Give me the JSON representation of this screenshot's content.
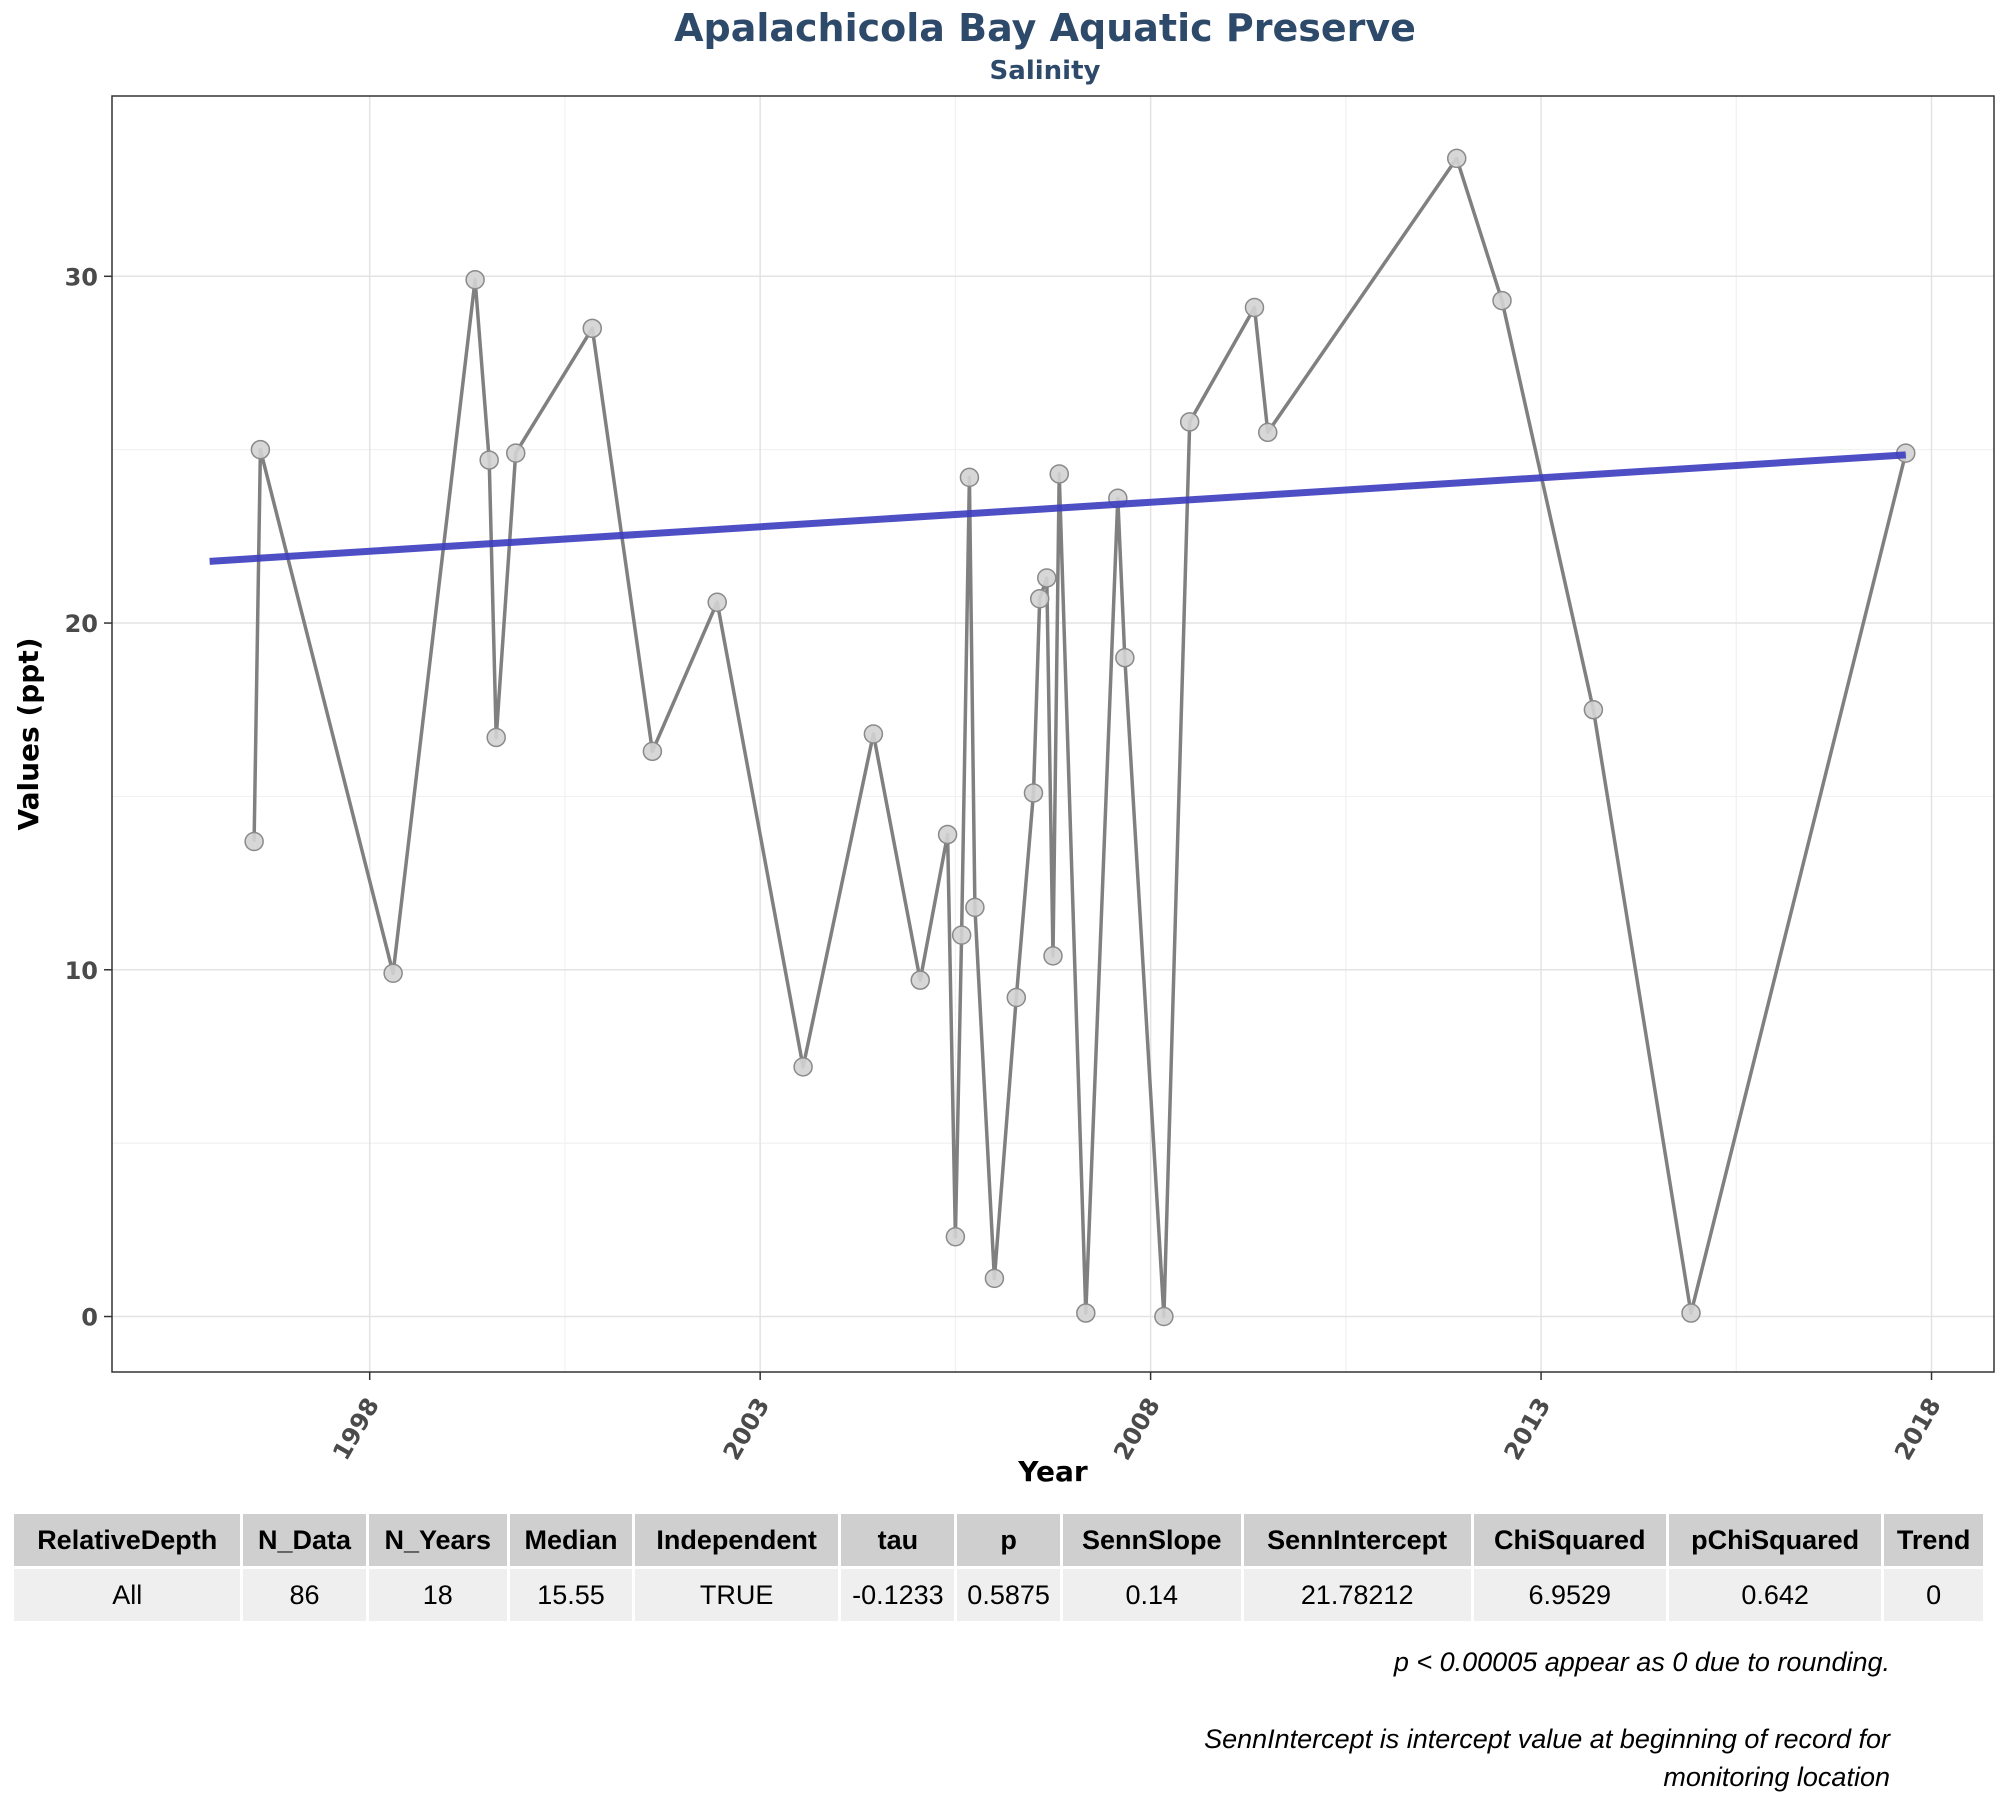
{
  "header": {
    "title": "Apalachicola Bay Aquatic Preserve",
    "subtitle": "Salinity"
  },
  "chart_data": {
    "type": "line",
    "title": "Apalachicola Bay Aquatic Preserve",
    "subtitle": "Salinity",
    "xlabel": "Year",
    "ylabel": "Values (ppt)",
    "xlim": [
      1994.7,
      2018.8
    ],
    "ylim": [
      -1.6,
      35.2
    ],
    "x_ticks": [
      1998,
      2003,
      2008,
      2013,
      2018
    ],
    "y_ticks": [
      0,
      10,
      20,
      30
    ],
    "grid": true,
    "series": [
      {
        "points": [
          [
            1996.52,
            13.7
          ],
          [
            1996.6,
            25.0
          ],
          [
            1998.3,
            9.9
          ],
          [
            1999.35,
            29.9
          ],
          [
            1999.53,
            24.7
          ],
          [
            1999.62,
            16.7
          ],
          [
            1999.87,
            24.9
          ],
          [
            2000.85,
            28.5
          ],
          [
            2001.62,
            16.3
          ],
          [
            2002.45,
            20.6
          ],
          [
            2003.55,
            7.2
          ],
          [
            2004.45,
            16.8
          ],
          [
            2005.05,
            9.7
          ],
          [
            2005.4,
            13.9
          ],
          [
            2005.5,
            2.3
          ],
          [
            2005.58,
            11.0
          ],
          [
            2005.68,
            24.2
          ],
          [
            2005.75,
            11.8
          ],
          [
            2006.0,
            1.1
          ],
          [
            2006.28,
            9.2
          ],
          [
            2006.5,
            15.1
          ],
          [
            2006.58,
            20.7
          ],
          [
            2006.67,
            21.3
          ],
          [
            2006.75,
            10.4
          ],
          [
            2006.83,
            24.3
          ],
          [
            2007.17,
            0.1
          ],
          [
            2007.58,
            23.6
          ],
          [
            2007.67,
            19.0
          ],
          [
            2008.17,
            0.0
          ],
          [
            2008.5,
            25.8
          ],
          [
            2009.33,
            29.1
          ],
          [
            2009.5,
            25.5
          ],
          [
            2011.92,
            33.4
          ],
          [
            2012.5,
            29.3
          ],
          [
            2013.67,
            17.5
          ],
          [
            2014.92,
            0.1
          ],
          [
            2017.67,
            24.9
          ]
        ]
      }
    ],
    "trend_line": {
      "x": [
        1995.95,
        2017.67
      ],
      "y": [
        21.78,
        24.85
      ]
    }
  },
  "table": {
    "headers": [
      "RelativeDepth",
      "N_Data",
      "N_Years",
      "Median",
      "Independent",
      "tau",
      "p",
      "SennSlope",
      "SennIntercept",
      "ChiSquared",
      "pChiSquared",
      "Trend"
    ],
    "rows": [
      [
        "All",
        "86",
        "18",
        "15.55",
        "TRUE",
        "-0.1233",
        "0.5875",
        "0.14",
        "21.78212",
        "6.9529",
        "0.642",
        "0"
      ]
    ]
  },
  "notes": {
    "note1": "p < 0.00005 appear as 0 due to rounding.",
    "note2": "SennIntercept is intercept value at beginning of record for monitoring location"
  },
  "colors": {
    "series_line": "#808080",
    "point_fill": "#d3d3d3",
    "trend_line": "#3c3cbf",
    "title": "#2e4a6b",
    "table_header": "#cfcfcf",
    "table_row": "#efefef"
  }
}
